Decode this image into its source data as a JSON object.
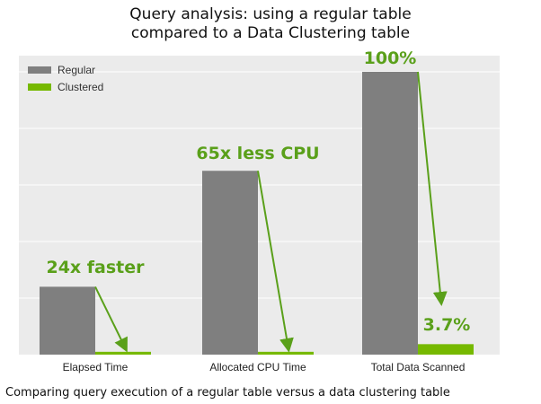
{
  "title_line1": "Query analysis: using a regular table",
  "title_line2": "compared to a Data Clustering table",
  "caption": "Comparing query execution of a regular table versus a data clustering table",
  "colors": {
    "regular": "#7f7f7f",
    "clustered": "#76b900",
    "annotation": "#5aa01a",
    "plot_bg": "#ebebeb",
    "grid": "#ffffff"
  },
  "chart_data": {
    "type": "bar",
    "categories": [
      "Elapsed Time",
      "Allocated CPU Time",
      "Total Data Scanned"
    ],
    "series": [
      {
        "name": "Regular",
        "values": [
          24,
          65,
          100
        ]
      },
      {
        "name": "Clustered",
        "values": [
          1,
          1,
          3.7
        ]
      }
    ],
    "ylim": [
      0,
      100
    ],
    "grid": true,
    "legend": "top-left",
    "annotations": [
      {
        "category": "Elapsed Time",
        "text": "24x faster"
      },
      {
        "category": "Allocated CPU Time",
        "text": "65x less CPU"
      },
      {
        "category": "Total Data Scanned",
        "text": "100%"
      },
      {
        "category": "Total Data Scanned",
        "text": "3.7%"
      }
    ]
  }
}
